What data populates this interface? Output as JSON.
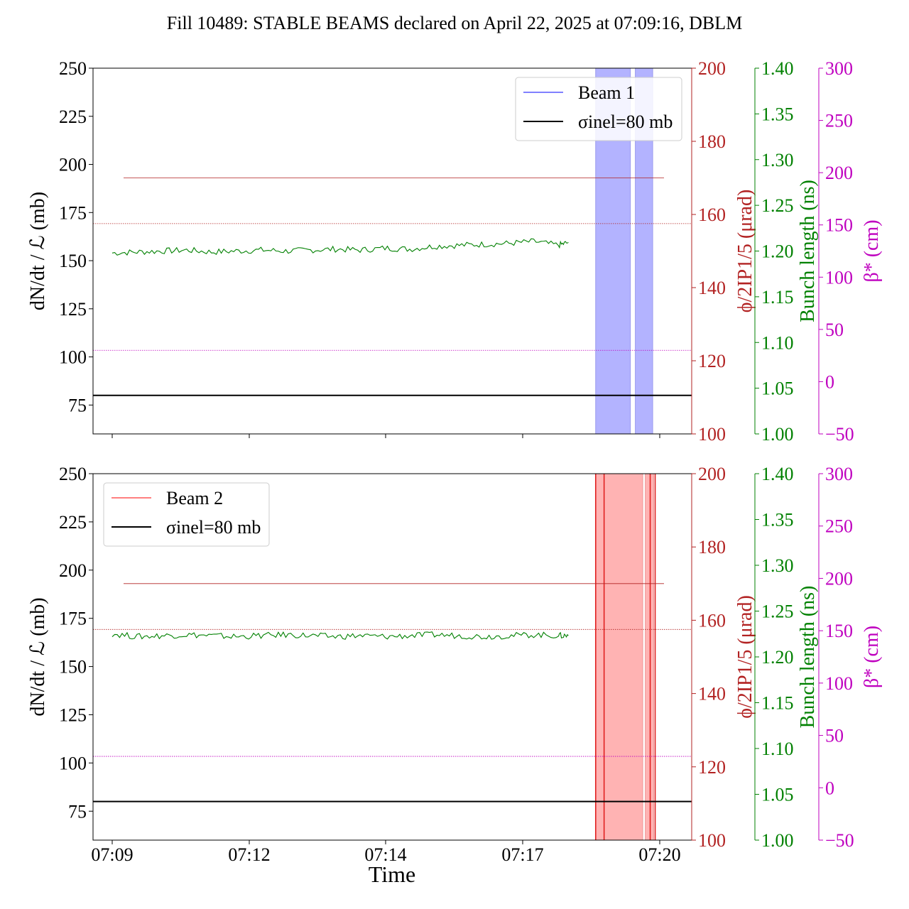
{
  "title": "Fill 10489: STABLE BEAMS declared on April 22, 2025 at 07:09:16, DBLM",
  "xlabel": "Time",
  "x_ticks": [
    "07:09",
    "07:12",
    "07:14",
    "07:17",
    "07:20"
  ],
  "colors": {
    "beam1": "#0000ff",
    "beam2": "#ff0000",
    "rate": "#008000",
    "crossing": "#b22222",
    "bunch": "#008000",
    "beta": "#bf00bf",
    "sigma": "#000000",
    "beam1_band": "#b3b3ff",
    "beam2_band": "#ffb3b3"
  },
  "chart_data": [
    {
      "type": "line",
      "panel": "top",
      "legend": [
        "Beam 1",
        "σinel=80 mb"
      ],
      "legend_position": "upper right",
      "y_axes": [
        {
          "label": "dN/dt / ℒ (mb)",
          "ylim": [
            60,
            250
          ],
          "ticks": [
            "250",
            "225",
            "200",
            "175",
            "150",
            "125",
            "100",
            "75"
          ]
        },
        {
          "label": "ϕ/2IP1/5 (μrad)",
          "ylim": [
            100,
            200
          ],
          "ticks": [
            "200",
            "180",
            "160",
            "140",
            "120",
            "100"
          ],
          "color": "crossing"
        },
        {
          "label": "Bunch length (ns)",
          "ylim": [
            1.0,
            1.4
          ],
          "ticks": [
            "1.40",
            "1.35",
            "1.30",
            "1.25",
            "1.20",
            "1.15",
            "1.10",
            "1.05",
            "1.00"
          ],
          "color": "bunch"
        },
        {
          "label": "β* (cm)",
          "ylim": [
            -50,
            300
          ],
          "ticks": [
            "300",
            "250",
            "200",
            "150",
            "100",
            "50",
            "0",
            "−50"
          ],
          "color": "beta"
        }
      ],
      "sigma_inel_mb": 80,
      "crossing_angle_urad": 170,
      "bunch_length_ns": 1.23,
      "beta_star_cm": 30,
      "time_range_min": [
        0,
        9.2
      ],
      "band_min": [
        [
          9.75,
          10.45
        ],
        [
          10.55,
          10.9
        ]
      ],
      "series": [
        {
          "name": "Beam 1",
          "x_min": [
            0,
            0.5,
            1,
            1.5,
            2,
            2.5,
            3,
            3.5,
            4,
            4.5,
            5,
            5.5,
            6,
            6.5,
            7,
            7.5,
            8,
            8.5,
            9,
            9.2
          ],
          "y": [
            154,
            154.5,
            155,
            155.5,
            154.5,
            155,
            155.5,
            155,
            155.5,
            156,
            155.5,
            156.5,
            156,
            157.5,
            158,
            158.5,
            159,
            160,
            158,
            159.5
          ]
        }
      ]
    },
    {
      "type": "line",
      "panel": "bottom",
      "legend": [
        "Beam 2",
        "σinel=80 mb"
      ],
      "legend_position": "upper left",
      "y_axes": [
        {
          "label": "dN/dt / ℒ (mb)",
          "ylim": [
            60,
            250
          ],
          "ticks": [
            "250",
            "225",
            "200",
            "175",
            "150",
            "125",
            "100",
            "75"
          ]
        },
        {
          "label": "ϕ/2IP1/5 (μrad)",
          "ylim": [
            100,
            200
          ],
          "ticks": [
            "200",
            "180",
            "160",
            "140",
            "120",
            "100"
          ],
          "color": "crossing"
        },
        {
          "label": "Bunch length (ns)",
          "ylim": [
            1.0,
            1.4
          ],
          "ticks": [
            "1.40",
            "1.35",
            "1.30",
            "1.25",
            "1.20",
            "1.15",
            "1.10",
            "1.05",
            "1.00"
          ],
          "color": "bunch"
        },
        {
          "label": "β* (cm)",
          "ylim": [
            -50,
            300
          ],
          "ticks": [
            "300",
            "250",
            "200",
            "150",
            "100",
            "50",
            "0",
            "−50"
          ],
          "color": "beta"
        }
      ],
      "sigma_inel_mb": 80,
      "crossing_angle_urad": 170,
      "bunch_length_ns": 1.23,
      "beta_star_cm": 30,
      "time_range_min": [
        0,
        9.2
      ],
      "band_min": [
        [
          9.75,
          10.7
        ],
        [
          10.75,
          10.92
        ]
      ],
      "red_lines_min": [
        9.75,
        9.92,
        10.85,
        10.95
      ],
      "series": [
        {
          "name": "Beam 2",
          "x_min": [
            0,
            0.5,
            1,
            1.5,
            2,
            2.5,
            3,
            3.5,
            4,
            4.5,
            5,
            5.5,
            6,
            6.5,
            7,
            7.5,
            8,
            8.5,
            9,
            9.2
          ],
          "y": [
            167,
            165.5,
            166,
            166.5,
            166,
            165.5,
            166,
            166.5,
            166,
            165.5,
            166,
            165.5,
            166,
            166.5,
            166,
            165.5,
            166,
            166.5,
            166,
            166
          ]
        }
      ]
    }
  ]
}
